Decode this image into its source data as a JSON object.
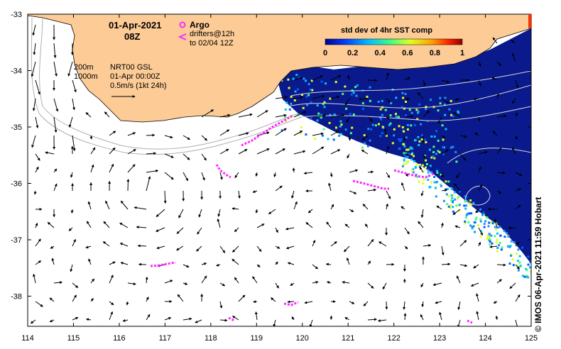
{
  "map": {
    "date": "01-Apr-2021",
    "time": "08Z",
    "legend": {
      "argo": "Argo",
      "drifters": "drifters@12h",
      "drifters_range": "to 02/04 12Z"
    },
    "contours": {
      "c200": "200m",
      "c1000": "1000m"
    },
    "currents": {
      "product": "NRT00 GSL",
      "valid": "01-Apr 00:00Z",
      "scale": "0.5m/s (1kt 24h)"
    },
    "colorbar": {
      "title": "std dev of 4hr SST comp",
      "ticks": [
        "0",
        "0.2",
        "0.4",
        "0.6",
        "0.8",
        "1"
      ],
      "range": [
        0,
        1
      ]
    },
    "axes": {
      "lon_ticks": [
        "114",
        "115",
        "116",
        "117",
        "118",
        "119",
        "120",
        "121",
        "122",
        "123",
        "124",
        "125"
      ],
      "lat_ticks": [
        "-33",
        "-34",
        "-35",
        "-36",
        "-37",
        "-38"
      ]
    },
    "colors": {
      "land": "#fccb96",
      "sst_background": "#0a1a8c",
      "drifters": "#ff2bff",
      "argo": "#ff2bff",
      "vectors": "#000000",
      "contour_lines": "#c8c8c8"
    },
    "credit": "© IMOS 06-Apr-2021 11:59 Hobart"
  }
}
